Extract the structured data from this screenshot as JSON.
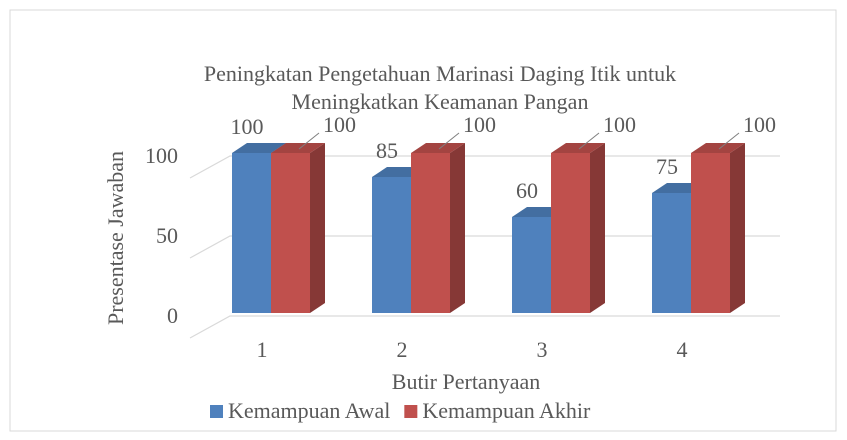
{
  "chart_data": {
    "type": "bar3d",
    "title": [
      "Peningkatan Pengetahuan Marinasi Daging Itik untuk",
      "Meningkatkan Keamanan Pangan"
    ],
    "x_label": "Butir Pertanyaan",
    "y_label": "Presentase Jawaban",
    "categories": [
      "1",
      "2",
      "3",
      "4"
    ],
    "series": [
      {
        "name": "Kemampuan Awal",
        "color": "#4f81bd",
        "values": [
          100,
          85,
          60,
          75
        ]
      },
      {
        "name": "Kemampuan Akhir",
        "color": "#c0504d",
        "values": [
          100,
          100,
          100,
          100
        ]
      }
    ],
    "ylim": [
      0,
      100
    ],
    "yticks": [
      0,
      50,
      100
    ],
    "grid": true,
    "legend": "bottom"
  }
}
